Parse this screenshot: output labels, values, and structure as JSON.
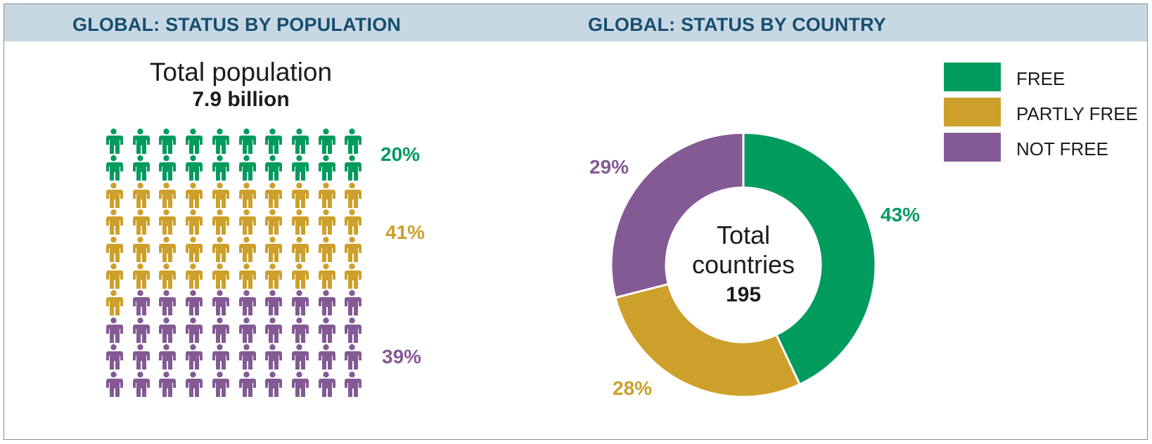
{
  "colors": {
    "free": "#009b5e",
    "partly_free": "#cca02a",
    "not_free": "#845a94",
    "header_band": "#c8d8e3",
    "header_text": "#174f70"
  },
  "left_panel": {
    "title": "GLOBAL: STATUS BY POPULATION",
    "caption_label": "Total population",
    "caption_value": "7.9 billion",
    "grid": {
      "columns": 10,
      "rows": 10,
      "counts": {
        "free": 20,
        "partly_free": 41,
        "not_free": 39
      }
    },
    "labels": {
      "free": "20%",
      "partly_free": "41%",
      "not_free": "39%"
    }
  },
  "right_panel": {
    "title": "GLOBAL: STATUS BY COUNTRY",
    "center_line1": "Total",
    "center_line2": "countries",
    "center_value": "195",
    "labels": {
      "free": "43%",
      "partly_free": "28%",
      "not_free": "29%"
    },
    "legend": [
      {
        "key": "free",
        "label": "FREE"
      },
      {
        "key": "partly_free",
        "label": "PARTLY FREE"
      },
      {
        "key": "not_free",
        "label": "NOT FREE"
      }
    ]
  },
  "chart_data": [
    {
      "type": "table",
      "subtype": "pictogram",
      "title": "GLOBAL: STATUS BY POPULATION",
      "subtitle": "Total population 7.9 billion",
      "categories": [
        "Free",
        "Partly Free",
        "Not Free"
      ],
      "values": [
        20,
        41,
        39
      ],
      "unit": "%",
      "icons_per_category": [
        20,
        41,
        39
      ],
      "grid": "10x10 person icons"
    },
    {
      "type": "pie",
      "subtype": "donut",
      "title": "GLOBAL: STATUS BY COUNTRY",
      "center_text": "Total countries 195",
      "categories": [
        "Free",
        "Partly Free",
        "Not Free"
      ],
      "values": [
        43,
        28,
        29
      ],
      "unit": "%",
      "legend": [
        "FREE",
        "PARTLY FREE",
        "NOT FREE"
      ],
      "legend_position": "top-right",
      "start_angle": "12 o'clock, clockwise"
    }
  ]
}
